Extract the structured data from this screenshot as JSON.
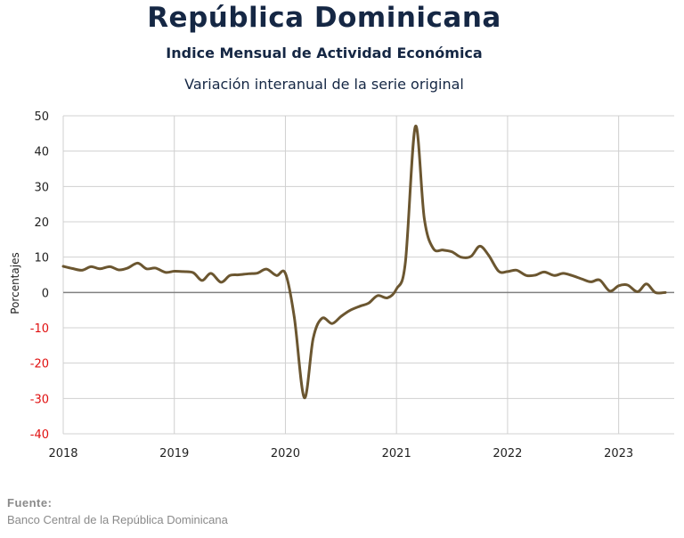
{
  "header": {
    "title": "República Dominicana",
    "subtitle": "Indice Mensual de  Actividad Económica",
    "subtitle2": "Variación interanual de la serie original"
  },
  "source": {
    "label": "Fuente:",
    "text": "Banco Central de la República Dominicana"
  },
  "colors": {
    "line": "#6b5630",
    "zero_line": "#808080",
    "grid": "#d0d0d0",
    "negative_tick": "#e01010",
    "positive_tick": "#222222"
  },
  "chart_data": {
    "type": "line",
    "title": "",
    "xlabel": "",
    "ylabel": "Porcentajes",
    "ylim": [
      -40,
      50
    ],
    "yticks": [
      50,
      40,
      30,
      20,
      10,
      0,
      -10,
      -20,
      -30,
      -40
    ],
    "xlim": [
      2018,
      2023.5
    ],
    "xticks": [
      "2018",
      "2019",
      "2020",
      "2021",
      "2022",
      "2023"
    ],
    "grid": true,
    "series": [
      {
        "name": "",
        "x": [
          2018.0,
          2018.08,
          2018.17,
          2018.25,
          2018.33,
          2018.42,
          2018.5,
          2018.58,
          2018.67,
          2018.75,
          2018.83,
          2018.92,
          2019.0,
          2019.08,
          2019.17,
          2019.25,
          2019.33,
          2019.42,
          2019.5,
          2019.58,
          2019.67,
          2019.75,
          2019.83,
          2019.92,
          2020.0,
          2020.08,
          2020.17,
          2020.25,
          2020.33,
          2020.42,
          2020.5,
          2020.58,
          2020.67,
          2020.75,
          2020.83,
          2020.92,
          2021.0,
          2021.08,
          2021.17,
          2021.25,
          2021.33,
          2021.42,
          2021.5,
          2021.58,
          2021.67,
          2021.75,
          2021.83,
          2021.92,
          2022.0,
          2022.08,
          2022.17,
          2022.25,
          2022.33,
          2022.42,
          2022.5,
          2022.58,
          2022.67,
          2022.75,
          2022.83,
          2022.92,
          2023.0,
          2023.08,
          2023.17,
          2023.25,
          2023.33,
          2023.42
        ],
        "values": [
          7.4,
          6.8,
          6.3,
          7.3,
          6.7,
          7.3,
          6.4,
          6.9,
          8.3,
          6.7,
          6.9,
          5.7,
          6.0,
          5.9,
          5.6,
          3.4,
          5.4,
          2.9,
          4.8,
          5.0,
          5.3,
          5.5,
          6.6,
          4.8,
          5.4,
          -7.0,
          -29.8,
          -13.0,
          -7.3,
          -8.8,
          -6.8,
          -5.1,
          -3.9,
          -3.0,
          -0.9,
          -1.5,
          1.0,
          8.5,
          47.0,
          21.0,
          12.5,
          12.0,
          11.5,
          10.0,
          10.2,
          13.1,
          10.5,
          6.0,
          5.9,
          6.3,
          4.8,
          4.9,
          5.8,
          4.8,
          5.4,
          4.8,
          3.8,
          3.0,
          3.5,
          0.4,
          1.9,
          2.1,
          0.2,
          2.4,
          0.0,
          0.0
        ]
      }
    ]
  }
}
